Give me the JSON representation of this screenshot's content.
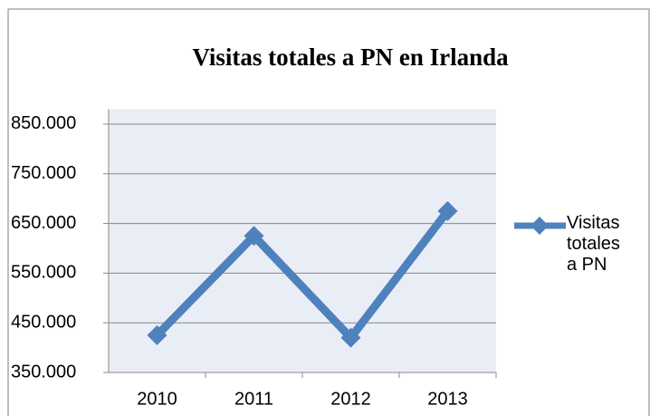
{
  "chart_data": {
    "type": "line",
    "title": "Visitas totales a PN en Irlanda",
    "categories": [
      "2010",
      "2011",
      "2012",
      "2013"
    ],
    "series": [
      {
        "name": "Visitas totales a PN",
        "color": "#4f81bd",
        "values": [
          425000,
          625000,
          420000,
          675000
        ]
      }
    ],
    "ylim": [
      350000,
      880000
    ],
    "yticks": [
      {
        "value": 350000,
        "label": "350.000"
      },
      {
        "value": 450000,
        "label": "450.000"
      },
      {
        "value": 550000,
        "label": "550.000"
      },
      {
        "value": 650000,
        "label": "650.000"
      },
      {
        "value": 750000,
        "label": "750.000"
      },
      {
        "value": 850000,
        "label": "850.000"
      }
    ],
    "grid": true,
    "legend": "right"
  }
}
